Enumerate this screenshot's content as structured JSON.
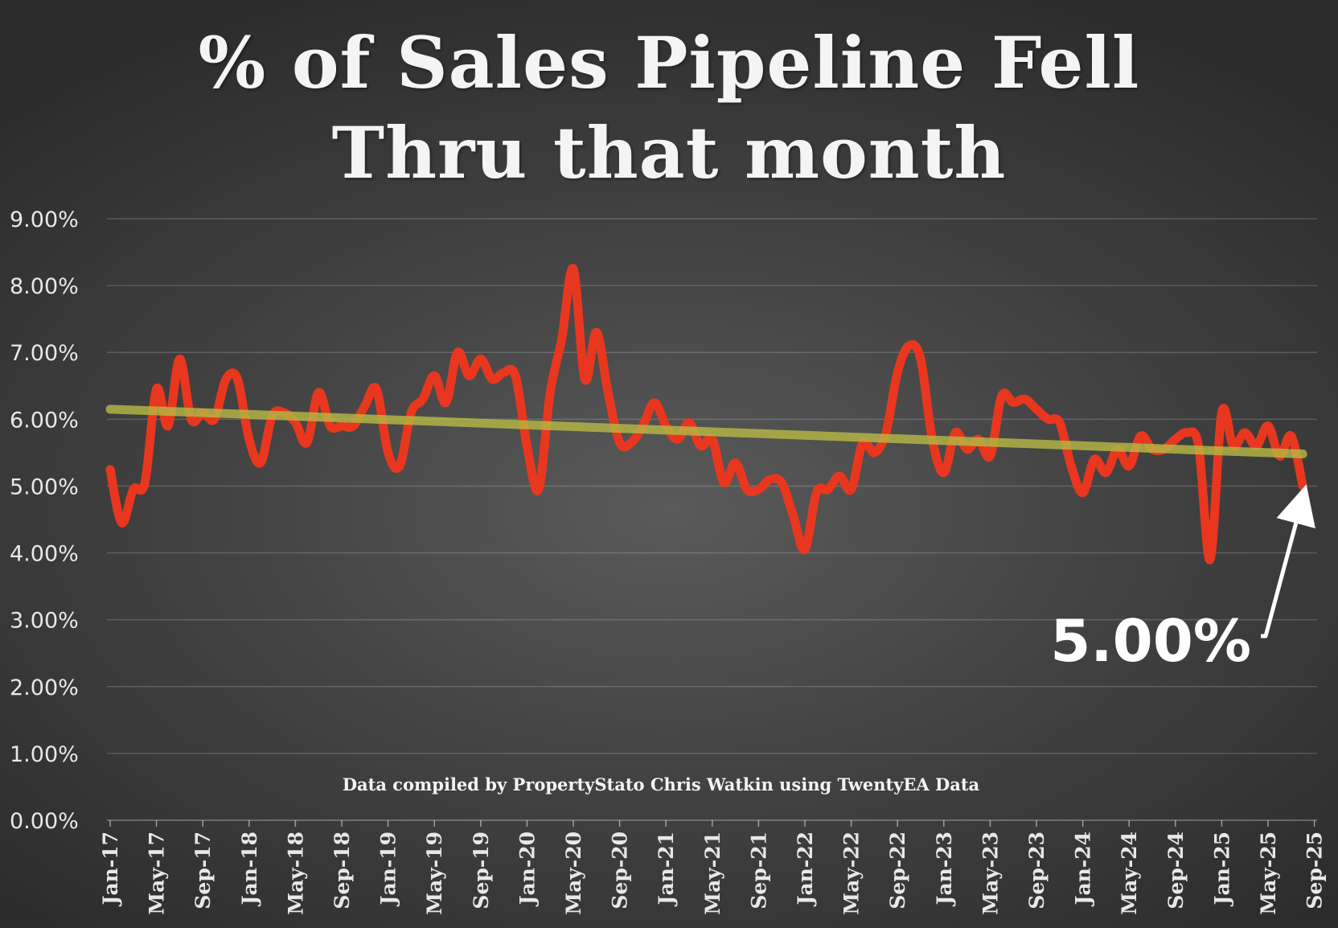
{
  "chart_data": {
    "type": "line",
    "title_lines": [
      "% of Sales Pipeline Fell",
      "Thru that month"
    ],
    "xlabel": "",
    "ylabel": "",
    "ylim": [
      0,
      0.09
    ],
    "y_ticks": [
      "0.00%",
      "1.00%",
      "2.00%",
      "3.00%",
      "4.00%",
      "5.00%",
      "6.00%",
      "7.00%",
      "8.00%",
      "9.00%"
    ],
    "x_ticks": [
      "Jan-17",
      "May-17",
      "Sep-17",
      "Jan-18",
      "May-18",
      "Sep-18",
      "Jan-19",
      "May-19",
      "Sep-19",
      "Jan-20",
      "May-20",
      "Sep-20",
      "Jan-21",
      "May-21",
      "Sep-21",
      "Jan-22",
      "May-22",
      "Sep-22",
      "Jan-23",
      "May-23",
      "Sep-23",
      "Jan-24",
      "May-24",
      "Sep-24",
      "Jan-25",
      "May-25",
      "Sep-25"
    ],
    "x_start": "Jan-17",
    "grid": true,
    "legend": "none",
    "series": [
      {
        "color": "#e8371e",
        "values": [
          0.0525,
          0.0445,
          0.0495,
          0.0505,
          0.0645,
          0.059,
          0.069,
          0.06,
          0.061,
          0.06,
          0.066,
          0.066,
          0.057,
          0.0535,
          0.0605,
          0.061,
          0.0595,
          0.0565,
          0.064,
          0.059,
          0.059,
          0.059,
          0.062,
          0.0645,
          0.055,
          0.053,
          0.061,
          0.063,
          0.0665,
          0.0625,
          0.07,
          0.0665,
          0.069,
          0.066,
          0.067,
          0.0665,
          0.056,
          0.0495,
          0.064,
          0.072,
          0.0825,
          0.066,
          0.073,
          0.064,
          0.0565,
          0.0565,
          0.059,
          0.0625,
          0.059,
          0.057,
          0.0595,
          0.056,
          0.057,
          0.0505,
          0.0535,
          0.0495,
          0.0495,
          0.051,
          0.0505,
          0.0455,
          0.0405,
          0.049,
          0.0495,
          0.0515,
          0.0495,
          0.0565,
          0.055,
          0.058,
          0.067,
          0.071,
          0.069,
          0.057,
          0.052,
          0.058,
          0.0555,
          0.057,
          0.0545,
          0.0635,
          0.0625,
          0.063,
          0.0615,
          0.06,
          0.0595,
          0.053,
          0.049,
          0.054,
          0.052,
          0.0555,
          0.053,
          0.0575,
          0.0555,
          0.0555,
          0.057,
          0.058,
          0.056,
          0.039,
          0.061,
          0.056,
          0.058,
          0.056,
          0.059,
          0.0545,
          0.0575,
          0.05
        ]
      }
    ],
    "trendline": {
      "color": "#b5b745",
      "start": 0.0615,
      "end": 0.0548
    },
    "annotation": {
      "label": "5.00%",
      "points_to": "latest value"
    },
    "source_note": "Data compiled by PropertyStato Chris Watkin using TwentyEA Data"
  }
}
